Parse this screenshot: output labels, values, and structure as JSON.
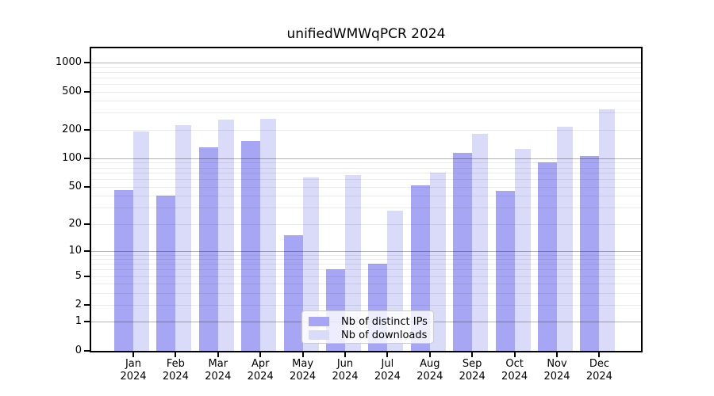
{
  "chart_data": {
    "type": "bar",
    "title": "unifiedWMWqPCR 2024",
    "categories": [
      "Jan 2024",
      "Feb 2024",
      "Mar 2024",
      "Apr 2024",
      "May 2024",
      "Jun 2024",
      "Jul 2024",
      "Aug 2024",
      "Sep 2024",
      "Oct 2024",
      "Nov 2024",
      "Dec 2024"
    ],
    "series": [
      {
        "name": "Nb of distinct IPs",
        "color": "#a6a6f4",
        "values": [
          46,
          40,
          130,
          153,
          15,
          6,
          7,
          52,
          113,
          45,
          90,
          106
        ]
      },
      {
        "name": "Nb of downloads",
        "color": "#dadaf9",
        "values": [
          190,
          222,
          255,
          258,
          63,
          66,
          28,
          70,
          181,
          125,
          215,
          328
        ]
      }
    ],
    "xlabel": "",
    "ylabel": "",
    "yscale": "log10(value+1)",
    "ylim": [
      0,
      1000
    ],
    "yticks": [
      0,
      1,
      2,
      5,
      10,
      20,
      50,
      100,
      200,
      500,
      1000
    ],
    "major_gridlines": [
      1,
      10,
      100,
      1000
    ],
    "minor_gridlines": [
      2,
      3,
      4,
      5,
      6,
      7,
      8,
      9,
      20,
      30,
      40,
      50,
      60,
      70,
      80,
      90,
      200,
      300,
      400,
      500,
      600,
      700,
      800,
      900
    ],
    "grid": true,
    "legend": {
      "position": "lower center",
      "items": [
        "Nb of distinct IPs",
        "Nb of downloads"
      ]
    },
    "colors": {
      "bar_distinct_ips": "#a6a6f4",
      "bar_downloads": "#dadaf9",
      "major_grid": "rgba(0,0,0,0.30)",
      "minor_grid": "rgba(0,0,0,0.08)",
      "axis": "#000000",
      "background": "#ffffff",
      "legend_border": "#cccccc"
    }
  }
}
